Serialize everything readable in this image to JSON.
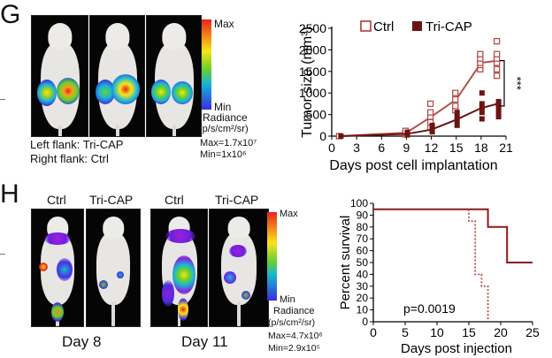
{
  "panelG": {
    "letter": "G",
    "colorbar": {
      "max_label": "Max",
      "min_label": "Min",
      "title_line1": "Radiance",
      "title_line2": "(p/s/cm²/sr)",
      "max_value": "Max=1.7x10⁷",
      "min_value": "Min=1x10⁶"
    },
    "caption_left": "Left flank: Tri-CAP",
    "caption_right": "Right flank: Ctrl"
  },
  "panelH": {
    "letter": "H",
    "labels": [
      "Ctrl",
      "Tri-CAP",
      "Ctrl",
      "Tri-CAP"
    ],
    "day_labels": [
      "Day 8",
      "Day 11"
    ],
    "colorbar": {
      "max_label": "Max",
      "min_label": "Min",
      "title_line1": "Radiance",
      "title_line2": "(p/s/cm²/sr)",
      "max_value": "Max=4.7x10⁶",
      "min_value": "Min=2.9x10⁵"
    }
  },
  "chart_data": [
    {
      "type": "line",
      "xlabel": "Days post cell implantation",
      "ylabel": "Tumor size (mm³)",
      "xlim": [
        0,
        21
      ],
      "ylim": [
        0,
        2500
      ],
      "xticks": [
        "0",
        "3",
        "6",
        "9",
        "12",
        "15",
        "18",
        "21"
      ],
      "yticks": [
        "0",
        "500",
        "1000",
        "1500",
        "2000",
        "2500"
      ],
      "legend": [
        "Ctrl",
        "Tri-CAP"
      ],
      "legend_position": "top",
      "significance": "***",
      "series": [
        {
          "name": "Ctrl",
          "color": "#b4504b",
          "marker": "open-square",
          "x": [
            1,
            9,
            12,
            15,
            18,
            20
          ],
          "y": [
            0,
            80,
            450,
            850,
            1700,
            1750
          ],
          "points": [
            [
              1,
              0
            ],
            [
              9,
              40
            ],
            [
              9,
              80
            ],
            [
              9,
              120
            ],
            [
              12,
              200
            ],
            [
              12,
              320
            ],
            [
              12,
              450
            ],
            [
              12,
              550
            ],
            [
              12,
              750
            ],
            [
              15,
              600
            ],
            [
              15,
              700
            ],
            [
              15,
              850
            ],
            [
              15,
              1000
            ],
            [
              18,
              1550
            ],
            [
              18,
              1650
            ],
            [
              18,
              1700
            ],
            [
              18,
              1800
            ],
            [
              18,
              1900
            ],
            [
              20,
              1400
            ],
            [
              20,
              1550
            ],
            [
              20,
              1700
            ],
            [
              20,
              1800
            ],
            [
              20,
              1900
            ],
            [
              20,
              2200
            ]
          ]
        },
        {
          "name": "Tri-CAP",
          "color": "#6b1414",
          "marker": "filled-square",
          "x": [
            1,
            9,
            12,
            15,
            18,
            20
          ],
          "y": [
            0,
            50,
            150,
            380,
            650,
            750
          ],
          "points": [
            [
              1,
              0
            ],
            [
              9,
              30
            ],
            [
              9,
              60
            ],
            [
              9,
              90
            ],
            [
              12,
              100
            ],
            [
              12,
              150
            ],
            [
              12,
              200
            ],
            [
              12,
              250
            ],
            [
              15,
              250
            ],
            [
              15,
              350
            ],
            [
              15,
              450
            ],
            [
              15,
              550
            ],
            [
              18,
              400
            ],
            [
              18,
              550
            ],
            [
              18,
              650
            ],
            [
              18,
              750
            ],
            [
              18,
              1000
            ],
            [
              20,
              450
            ],
            [
              20,
              550
            ],
            [
              20,
              650
            ],
            [
              20,
              750
            ],
            [
              20,
              800
            ]
          ]
        }
      ]
    },
    {
      "type": "line",
      "xlabel": "Days post injection",
      "ylabel": "Percent survival",
      "xlim": [
        0,
        25
      ],
      "ylim": [
        0,
        100
      ],
      "xticks": [
        "0",
        "5",
        "10",
        "15",
        "20",
        "25"
      ],
      "yticks": [
        "0",
        "10",
        "20",
        "30",
        "40",
        "50",
        "60",
        "70",
        "80",
        "90",
        "100"
      ],
      "annotation": "p=0.0019",
      "series": [
        {
          "color": "#8b1a1a",
          "line_style": "solid",
          "steps": [
            [
              0,
              95
            ],
            [
              18,
              95
            ],
            [
              18,
              80
            ],
            [
              21,
              80
            ],
            [
              21,
              50
            ],
            [
              25,
              50
            ]
          ]
        },
        {
          "color": "#b4504b",
          "line_style": "dotted",
          "steps": [
            [
              15,
              95
            ],
            [
              15,
              85
            ],
            [
              16,
              85
            ],
            [
              16,
              40
            ],
            [
              17,
              40
            ],
            [
              17,
              30
            ],
            [
              18,
              30
            ],
            [
              18,
              0
            ]
          ]
        }
      ]
    }
  ]
}
